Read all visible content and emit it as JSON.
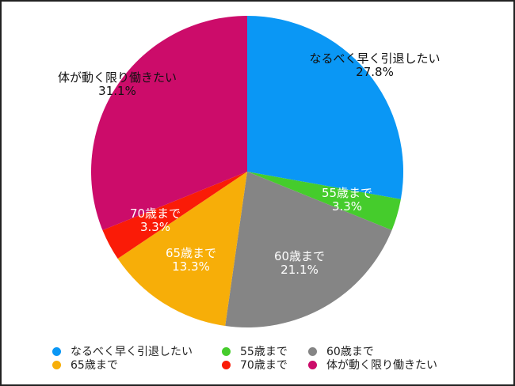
{
  "chart_data": {
    "type": "pie",
    "title": "",
    "start_angle_deg": 0,
    "direction": "clockwise",
    "slices": [
      {
        "label": "なるべく早く引退したい",
        "value": 27.8,
        "display": "27.8%",
        "color": "#0A97F5",
        "label_color": "#111111"
      },
      {
        "label": "55歳まで",
        "value": 3.3,
        "display": "3.3%",
        "color": "#45CC2C",
        "label_color": "#FFFFFF"
      },
      {
        "label": "60歳まで",
        "value": 21.1,
        "display": "21.1%",
        "color": "#858585",
        "label_color": "#FFFFFF"
      },
      {
        "label": "65歳まで",
        "value": 13.3,
        "display": "13.3%",
        "color": "#F7AE08",
        "label_color": "#FFFFFF"
      },
      {
        "label": "70歳まで",
        "value": 3.3,
        "display": "3.3%",
        "color": "#FA1B07",
        "label_color": "#FFFFFF"
      },
      {
        "label": "体が動く限り働きたい",
        "value": 31.1,
        "display": "31.1%",
        "color": "#CC0C6A",
        "label_color": "#111111"
      }
    ],
    "legend": {
      "position": "bottom",
      "rows": [
        [
          "なるべく早く引退したい",
          "55歳まで",
          "60歳まで"
        ],
        [
          "65歳まで",
          "70歳まで",
          "体が動く限り働きたい"
        ]
      ]
    }
  }
}
